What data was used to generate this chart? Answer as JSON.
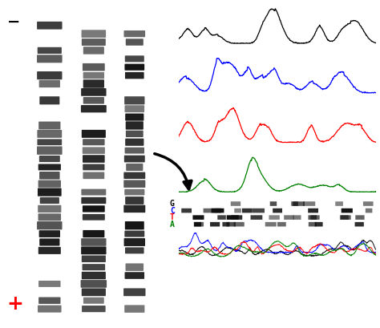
{
  "background": "white",
  "gel_bg": "#a8a8a8",
  "gel_band_color": "#111111",
  "minus_color": "black",
  "plus_color": "red",
  "label_G": "G",
  "label_C": "C",
  "label_T": "T",
  "label_A": "A",
  "color_G": "black",
  "color_C": "blue",
  "color_T": "red",
  "color_A": "green",
  "trace_colors": [
    "black",
    "blue",
    "red",
    "green"
  ]
}
